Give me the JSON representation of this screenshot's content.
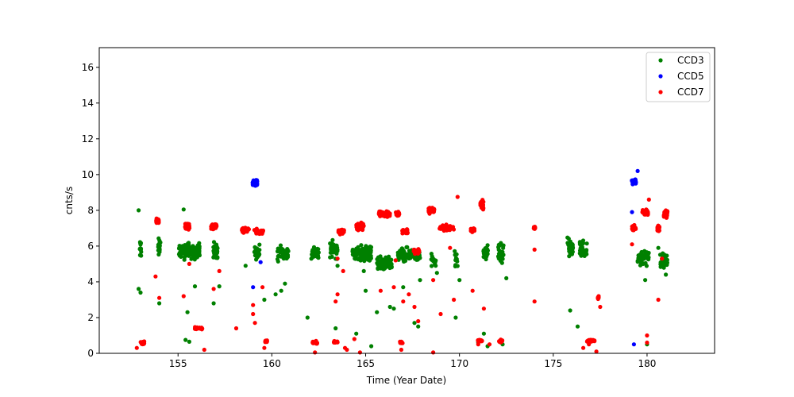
{
  "chart_data": {
    "type": "scatter",
    "title": "",
    "xlabel": "Time (Year Date)",
    "ylabel": "cnts/s",
    "xlim": [
      150.8,
      183.6
    ],
    "ylim": [
      0,
      17.1
    ],
    "xticks": [
      155,
      160,
      165,
      170,
      175,
      180
    ],
    "yticks": [
      0,
      2,
      4,
      6,
      8,
      10,
      12,
      14,
      16
    ],
    "grid": false,
    "legend": {
      "placement": "top-right",
      "entries": [
        "CCD3",
        "CCD5",
        "CCD7"
      ]
    },
    "series": [
      {
        "name": "CCD3",
        "color": "#008000",
        "clusters": [
          {
            "x": 153.0,
            "y": 5.9,
            "n": 14,
            "dx": 0.05,
            "dy": 0.9
          },
          {
            "x": 154.0,
            "y": 5.9,
            "n": 16,
            "dx": 0.1,
            "dy": 0.8
          },
          {
            "x": 155.6,
            "y": 5.7,
            "n": 120,
            "dx": 0.55,
            "dy": 0.7
          },
          {
            "x": 157.0,
            "y": 5.8,
            "n": 30,
            "dx": 0.12,
            "dy": 0.7
          },
          {
            "x": 159.2,
            "y": 5.6,
            "n": 28,
            "dx": 0.15,
            "dy": 0.8
          },
          {
            "x": 160.6,
            "y": 5.6,
            "n": 40,
            "dx": 0.3,
            "dy": 0.7
          },
          {
            "x": 162.3,
            "y": 5.6,
            "n": 30,
            "dx": 0.2,
            "dy": 0.7
          },
          {
            "x": 163.3,
            "y": 5.8,
            "n": 40,
            "dx": 0.2,
            "dy": 0.7
          },
          {
            "x": 164.8,
            "y": 5.6,
            "n": 120,
            "dx": 0.5,
            "dy": 0.7
          },
          {
            "x": 166.0,
            "y": 5.0,
            "n": 90,
            "dx": 0.4,
            "dy": 0.6
          },
          {
            "x": 167.3,
            "y": 5.5,
            "n": 100,
            "dx": 0.6,
            "dy": 0.6
          },
          {
            "x": 168.6,
            "y": 5.3,
            "n": 15,
            "dx": 0.15,
            "dy": 0.8
          },
          {
            "x": 169.8,
            "y": 5.2,
            "n": 10,
            "dx": 0.1,
            "dy": 0.8
          },
          {
            "x": 171.4,
            "y": 5.6,
            "n": 25,
            "dx": 0.12,
            "dy": 0.8
          },
          {
            "x": 172.2,
            "y": 5.6,
            "n": 25,
            "dx": 0.15,
            "dy": 0.8
          },
          {
            "x": 175.9,
            "y": 5.9,
            "n": 35,
            "dx": 0.15,
            "dy": 0.8
          },
          {
            "x": 176.6,
            "y": 5.9,
            "n": 40,
            "dx": 0.2,
            "dy": 0.8
          },
          {
            "x": 179.8,
            "y": 5.3,
            "n": 40,
            "dx": 0.3,
            "dy": 0.7
          },
          {
            "x": 180.9,
            "y": 5.2,
            "n": 40,
            "dx": 0.2,
            "dy": 0.6
          }
        ],
        "points": [
          [
            152.9,
            8.0
          ],
          [
            152.9,
            3.6
          ],
          [
            153.0,
            3.4
          ],
          [
            155.3,
            8.05
          ],
          [
            155.4,
            0.75
          ],
          [
            155.6,
            0.65
          ],
          [
            155.5,
            2.3
          ],
          [
            155.9,
            3.75
          ],
          [
            156.9,
            2.8
          ],
          [
            157.2,
            3.75
          ],
          [
            154.0,
            2.8
          ],
          [
            158.6,
            4.9
          ],
          [
            159.6,
            3.0
          ],
          [
            160.2,
            3.3
          ],
          [
            160.7,
            3.9
          ],
          [
            160.5,
            3.5
          ],
          [
            161.9,
            2.0
          ],
          [
            163.4,
            1.4
          ],
          [
            163.5,
            4.9
          ],
          [
            164.5,
            1.1
          ],
          [
            164.9,
            4.6
          ],
          [
            165.3,
            0.4
          ],
          [
            165.0,
            3.5
          ],
          [
            165.6,
            2.3
          ],
          [
            166.3,
            2.6
          ],
          [
            166.5,
            2.5
          ],
          [
            167.0,
            3.7
          ],
          [
            167.6,
            1.7
          ],
          [
            167.8,
            1.5
          ],
          [
            167.9,
            4.1
          ],
          [
            168.8,
            4.5
          ],
          [
            169.8,
            2.0
          ],
          [
            170.0,
            4.1
          ],
          [
            171.0,
            0.6
          ],
          [
            171.3,
            1.1
          ],
          [
            171.5,
            0.4
          ],
          [
            172.3,
            0.5
          ],
          [
            172.5,
            4.2
          ],
          [
            175.9,
            2.4
          ],
          [
            176.3,
            1.5
          ],
          [
            179.9,
            4.1
          ],
          [
            181.0,
            4.4
          ],
          [
            180.0,
            0.5
          ],
          [
            180.6,
            5.9
          ]
        ]
      },
      {
        "name": "CCD5",
        "color": "#0000ff",
        "clusters": [
          {
            "x": 159.1,
            "y": 9.55,
            "n": 60,
            "dx": 0.12,
            "dy": 0.3
          },
          {
            "x": 179.3,
            "y": 9.6,
            "n": 30,
            "dx": 0.12,
            "dy": 0.3
          }
        ],
        "points": [
          [
            159.0,
            3.7
          ],
          [
            159.4,
            5.1
          ],
          [
            179.2,
            7.9
          ],
          [
            179.5,
            10.2
          ],
          [
            179.3,
            0.5
          ]
        ]
      },
      {
        "name": "CCD7",
        "color": "#ff0000",
        "clusters": [
          {
            "x": 153.1,
            "y": 0.6,
            "n": 24,
            "dx": 0.1,
            "dy": 0.15
          },
          {
            "x": 153.9,
            "y": 7.4,
            "n": 30,
            "dx": 0.07,
            "dy": 0.25
          },
          {
            "x": 155.5,
            "y": 7.1,
            "n": 40,
            "dx": 0.12,
            "dy": 0.3
          },
          {
            "x": 156.1,
            "y": 1.4,
            "n": 30,
            "dx": 0.2,
            "dy": 0.1
          },
          {
            "x": 156.9,
            "y": 7.1,
            "n": 40,
            "dx": 0.15,
            "dy": 0.3
          },
          {
            "x": 158.6,
            "y": 6.9,
            "n": 40,
            "dx": 0.2,
            "dy": 0.2
          },
          {
            "x": 159.3,
            "y": 6.8,
            "n": 40,
            "dx": 0.25,
            "dy": 0.2
          },
          {
            "x": 159.7,
            "y": 0.7,
            "n": 12,
            "dx": 0.05,
            "dy": 0.1
          },
          {
            "x": 162.3,
            "y": 0.6,
            "n": 20,
            "dx": 0.12,
            "dy": 0.12
          },
          {
            "x": 163.4,
            "y": 0.6,
            "n": 12,
            "dx": 0.1,
            "dy": 0.12
          },
          {
            "x": 163.7,
            "y": 6.8,
            "n": 60,
            "dx": 0.15,
            "dy": 0.2
          },
          {
            "x": 164.7,
            "y": 7.1,
            "n": 60,
            "dx": 0.2,
            "dy": 0.3
          },
          {
            "x": 166.0,
            "y": 7.8,
            "n": 90,
            "dx": 0.3,
            "dy": 0.25
          },
          {
            "x": 166.7,
            "y": 7.8,
            "n": 20,
            "dx": 0.1,
            "dy": 0.3
          },
          {
            "x": 166.9,
            "y": 0.6,
            "n": 12,
            "dx": 0.08,
            "dy": 0.12
          },
          {
            "x": 167.1,
            "y": 6.8,
            "n": 30,
            "dx": 0.15,
            "dy": 0.2
          },
          {
            "x": 167.7,
            "y": 5.7,
            "n": 30,
            "dx": 0.15,
            "dy": 0.25
          },
          {
            "x": 168.5,
            "y": 8.0,
            "n": 40,
            "dx": 0.15,
            "dy": 0.25
          },
          {
            "x": 169.3,
            "y": 7.0,
            "n": 40,
            "dx": 0.4,
            "dy": 0.25
          },
          {
            "x": 170.7,
            "y": 6.9,
            "n": 20,
            "dx": 0.1,
            "dy": 0.2
          },
          {
            "x": 171.2,
            "y": 8.3,
            "n": 25,
            "dx": 0.08,
            "dy": 0.35
          },
          {
            "x": 171.1,
            "y": 0.7,
            "n": 15,
            "dx": 0.12,
            "dy": 0.12
          },
          {
            "x": 172.2,
            "y": 0.7,
            "n": 15,
            "dx": 0.1,
            "dy": 0.12
          },
          {
            "x": 174.0,
            "y": 7.05,
            "n": 10,
            "dx": 0.04,
            "dy": 0.15
          },
          {
            "x": 177.0,
            "y": 0.7,
            "n": 25,
            "dx": 0.2,
            "dy": 0.1
          },
          {
            "x": 177.4,
            "y": 3.1,
            "n": 8,
            "dx": 0.03,
            "dy": 0.2
          },
          {
            "x": 179.3,
            "y": 7.0,
            "n": 30,
            "dx": 0.1,
            "dy": 0.3
          },
          {
            "x": 179.9,
            "y": 7.9,
            "n": 40,
            "dx": 0.15,
            "dy": 0.3
          },
          {
            "x": 180.6,
            "y": 7.0,
            "n": 20,
            "dx": 0.06,
            "dy": 0.3
          },
          {
            "x": 181.0,
            "y": 7.8,
            "n": 50,
            "dx": 0.1,
            "dy": 0.3
          }
        ],
        "points": [
          [
            152.8,
            0.3
          ],
          [
            153.8,
            4.3
          ],
          [
            154.0,
            3.1
          ],
          [
            155.3,
            3.2
          ],
          [
            155.6,
            5.0
          ],
          [
            156.4,
            0.2
          ],
          [
            156.9,
            3.6
          ],
          [
            157.2,
            4.6
          ],
          [
            158.1,
            1.4
          ],
          [
            159.0,
            2.2
          ],
          [
            159.0,
            2.7
          ],
          [
            159.1,
            1.7
          ],
          [
            159.6,
            0.3
          ],
          [
            159.5,
            3.7
          ],
          [
            162.3,
            0.05
          ],
          [
            163.5,
            3.3
          ],
          [
            163.4,
            2.9
          ],
          [
            163.5,
            5.3
          ],
          [
            163.9,
            0.3
          ],
          [
            164.0,
            0.2
          ],
          [
            163.8,
            4.6
          ],
          [
            164.4,
            0.8
          ],
          [
            164.7,
            0.05
          ],
          [
            165.8,
            3.5
          ],
          [
            166.5,
            3.7
          ],
          [
            166.6,
            5.2
          ],
          [
            166.9,
            0.2
          ],
          [
            167.0,
            2.9
          ],
          [
            167.3,
            3.3
          ],
          [
            167.6,
            2.6
          ],
          [
            167.8,
            1.8
          ],
          [
            168.6,
            4.1
          ],
          [
            168.6,
            0.05
          ],
          [
            169.0,
            2.2
          ],
          [
            169.5,
            5.9
          ],
          [
            169.7,
            3.0
          ],
          [
            169.9,
            8.75
          ],
          [
            170.7,
            3.5
          ],
          [
            171.0,
            0.5
          ],
          [
            171.3,
            2.5
          ],
          [
            171.6,
            0.5
          ],
          [
            174.0,
            2.9
          ],
          [
            174.0,
            5.8
          ],
          [
            176.6,
            0.3
          ],
          [
            176.9,
            0.5
          ],
          [
            177.3,
            0.1
          ],
          [
            177.5,
            2.6
          ],
          [
            180.0,
            0.6
          ],
          [
            180.0,
            1.0
          ],
          [
            180.6,
            3.0
          ],
          [
            180.8,
            5.3
          ],
          [
            180.1,
            8.6
          ],
          [
            179.2,
            6.1
          ]
        ]
      }
    ]
  }
}
